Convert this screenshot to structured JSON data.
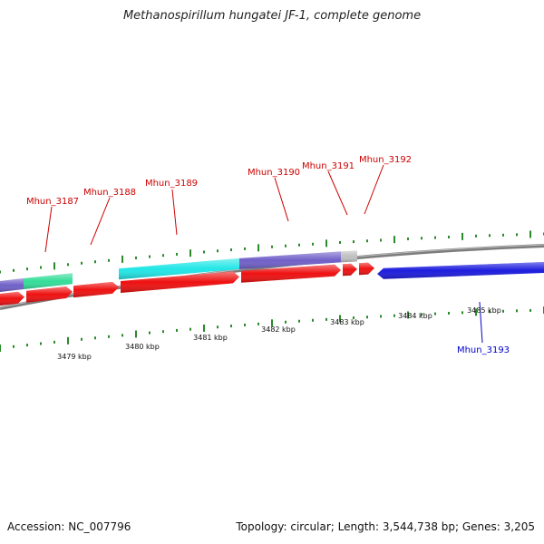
{
  "header": {
    "title": "Methanospirillum hungatei JF-1, complete genome"
  },
  "footer": {
    "accession": "Accession: NC_007796",
    "summary": "Topology: circular; Length: 3,544,738 bp; Genes: 3,205"
  },
  "colors": {
    "forward_gene": "#ee1111",
    "reverse_gene": "#1c1cdd",
    "backbone": "#808080",
    "tick": "#2a8a2a",
    "feature_cyan": "#22e6e6",
    "feature_purple": "#7060c8",
    "feature_green": "#33dd99",
    "feature_grey": "#c0c0c0",
    "label_forward": "#cc0000",
    "label_reverse": "#0000cc"
  },
  "scale_labels": [
    "3479 kbp",
    "3480 kbp",
    "3481 kbp",
    "3482 kbp",
    "3483 kbp",
    "3484 kbp",
    "3485 kbp"
  ],
  "genes": [
    {
      "label": "Mhun_3187",
      "strand": "forward"
    },
    {
      "label": "Mhun_3188",
      "strand": "forward"
    },
    {
      "label": "Mhun_3189",
      "strand": "forward"
    },
    {
      "label": "Mhun_3190",
      "strand": "forward"
    },
    {
      "label": "Mhun_3191",
      "strand": "forward"
    },
    {
      "label": "Mhun_3192",
      "strand": "forward"
    },
    {
      "label": "Mhun_3193",
      "strand": "reverse"
    }
  ]
}
